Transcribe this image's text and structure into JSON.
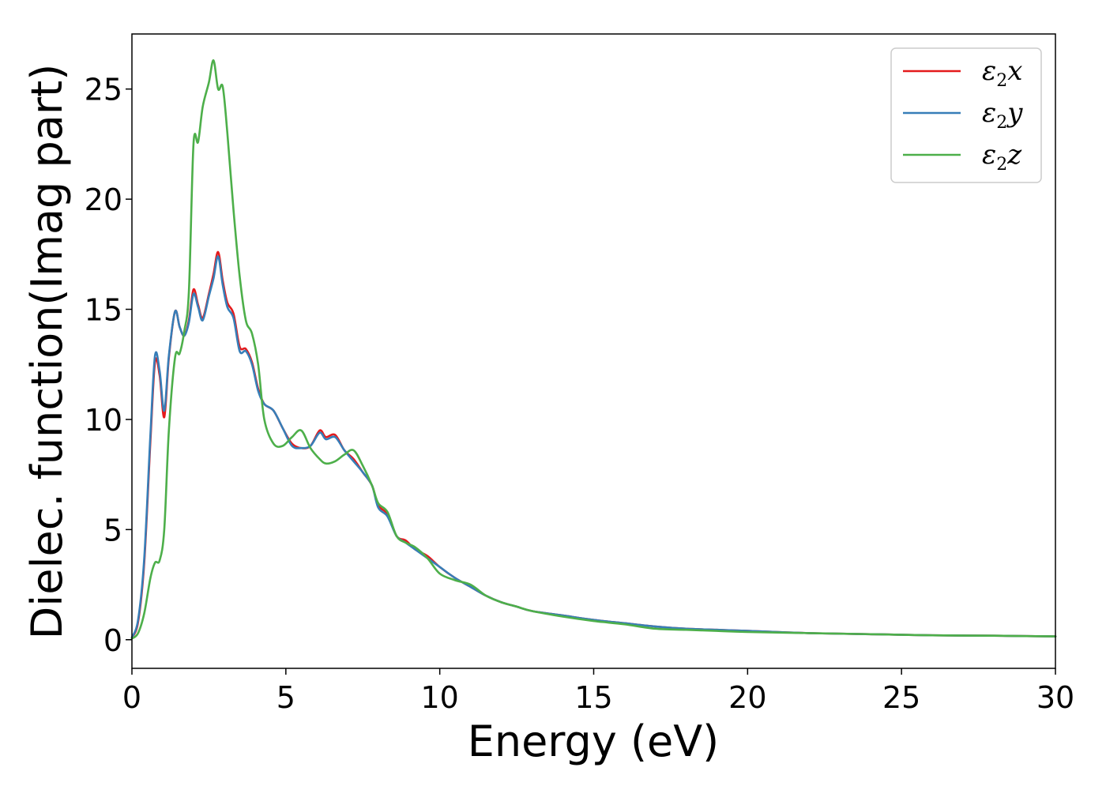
{
  "chart_data": {
    "type": "line",
    "title": "",
    "xlabel": "Energy (eV)",
    "ylabel": "Dielec. function(Imag part)",
    "xlim": [
      0,
      30
    ],
    "ylim": [
      -1.3,
      27.5
    ],
    "xticks": [
      0,
      5,
      10,
      15,
      20,
      25,
      30
    ],
    "yticks": [
      0,
      5,
      10,
      15,
      20,
      25
    ],
    "grid": false,
    "legend_position": "top-right",
    "series": [
      {
        "name": "ε2x",
        "legend_base": "ε",
        "legend_sub": "2",
        "legend_tail": "x",
        "color": "#e41a1c",
        "x": [
          0,
          0.2,
          0.4,
          0.6,
          0.75,
          0.9,
          1.05,
          1.2,
          1.4,
          1.55,
          1.7,
          1.85,
          2.0,
          2.15,
          2.3,
          2.5,
          2.65,
          2.8,
          2.95,
          3.1,
          3.3,
          3.5,
          3.7,
          3.9,
          4.1,
          4.3,
          4.6,
          4.9,
          5.2,
          5.5,
          5.8,
          6.1,
          6.3,
          6.6,
          6.9,
          7.2,
          7.5,
          7.8,
          8.0,
          8.3,
          8.6,
          8.9,
          9.2,
          9.6,
          10.0,
          10.5,
          11.0,
          11.5,
          12.0,
          12.5,
          13.0,
          14.0,
          15.0,
          16.0,
          17.0,
          18.0,
          19.0,
          20.0,
          22.0,
          24.0,
          26.0,
          28.0,
          30.0
        ],
        "values": [
          0.1,
          0.8,
          3.5,
          9.0,
          12.6,
          12.0,
          10.1,
          12.8,
          14.9,
          14.2,
          13.8,
          14.5,
          15.9,
          15.2,
          14.6,
          15.7,
          16.6,
          17.6,
          16.3,
          15.3,
          14.8,
          13.3,
          13.2,
          12.6,
          11.4,
          10.7,
          10.4,
          9.6,
          8.9,
          8.7,
          8.8,
          9.5,
          9.2,
          9.3,
          8.6,
          8.2,
          7.6,
          7.0,
          6.1,
          5.7,
          4.7,
          4.5,
          4.1,
          3.8,
          3.3,
          2.8,
          2.4,
          2.0,
          1.7,
          1.5,
          1.3,
          1.1,
          0.9,
          0.75,
          0.6,
          0.5,
          0.45,
          0.4,
          0.3,
          0.25,
          0.2,
          0.18,
          0.15
        ]
      },
      {
        "name": "ε2y",
        "legend_base": "ε",
        "legend_sub": "2",
        "legend_tail": "y",
        "color": "#377eb8",
        "x": [
          0,
          0.2,
          0.4,
          0.6,
          0.75,
          0.9,
          1.05,
          1.2,
          1.4,
          1.55,
          1.7,
          1.85,
          2.0,
          2.15,
          2.3,
          2.5,
          2.65,
          2.8,
          2.95,
          3.1,
          3.3,
          3.5,
          3.7,
          3.9,
          4.1,
          4.3,
          4.6,
          4.9,
          5.2,
          5.5,
          5.8,
          6.1,
          6.3,
          6.6,
          6.9,
          7.2,
          7.5,
          7.8,
          8.0,
          8.3,
          8.6,
          8.9,
          9.2,
          9.6,
          10.0,
          10.5,
          11.0,
          11.5,
          12.0,
          12.5,
          13.0,
          14.0,
          15.0,
          16.0,
          17.0,
          18.0,
          19.0,
          20.0,
          22.0,
          24.0,
          26.0,
          28.0,
          30.0
        ],
        "values": [
          0.1,
          0.9,
          3.7,
          9.3,
          12.9,
          12.2,
          10.4,
          12.9,
          14.9,
          14.2,
          13.8,
          14.4,
          15.7,
          15.1,
          14.5,
          15.6,
          16.4,
          17.4,
          16.1,
          15.1,
          14.6,
          13.1,
          13.1,
          12.5,
          11.3,
          10.7,
          10.4,
          9.6,
          8.8,
          8.7,
          8.8,
          9.4,
          9.1,
          9.2,
          8.6,
          8.1,
          7.6,
          7.0,
          6.0,
          5.6,
          4.7,
          4.4,
          4.1,
          3.7,
          3.3,
          2.8,
          2.4,
          2.0,
          1.7,
          1.5,
          1.3,
          1.1,
          0.9,
          0.75,
          0.6,
          0.5,
          0.45,
          0.4,
          0.3,
          0.25,
          0.2,
          0.18,
          0.15
        ]
      },
      {
        "name": "ε2z",
        "legend_base": "ε",
        "legend_sub": "2",
        "legend_tail": "z",
        "color": "#4daf4a",
        "x": [
          0,
          0.2,
          0.4,
          0.6,
          0.75,
          0.9,
          1.05,
          1.2,
          1.4,
          1.55,
          1.7,
          1.85,
          2.0,
          2.15,
          2.3,
          2.5,
          2.65,
          2.8,
          2.95,
          3.1,
          3.3,
          3.5,
          3.7,
          3.9,
          4.1,
          4.3,
          4.6,
          4.9,
          5.2,
          5.5,
          5.8,
          6.1,
          6.3,
          6.6,
          6.9,
          7.2,
          7.5,
          7.8,
          8.0,
          8.3,
          8.6,
          8.9,
          9.2,
          9.6,
          10.0,
          10.5,
          11.0,
          11.5,
          12.0,
          12.5,
          13.0,
          14.0,
          15.0,
          16.0,
          17.0,
          18.0,
          19.0,
          20.0,
          22.0,
          24.0,
          26.0,
          28.0,
          30.0
        ],
        "values": [
          0.05,
          0.3,
          1.2,
          2.8,
          3.5,
          3.6,
          5.0,
          9.5,
          12.8,
          13.0,
          14.0,
          15.8,
          22.5,
          22.6,
          24.2,
          25.3,
          26.3,
          25.0,
          25.1,
          23.0,
          19.5,
          16.5,
          14.5,
          13.9,
          12.5,
          10.0,
          8.9,
          8.8,
          9.2,
          9.5,
          8.7,
          8.2,
          8.0,
          8.1,
          8.4,
          8.6,
          7.9,
          7.0,
          6.2,
          5.8,
          4.7,
          4.4,
          4.2,
          3.7,
          3.0,
          2.7,
          2.5,
          2.0,
          1.7,
          1.5,
          1.3,
          1.05,
          0.85,
          0.7,
          0.5,
          0.45,
          0.4,
          0.35,
          0.3,
          0.25,
          0.2,
          0.18,
          0.15
        ]
      }
    ]
  }
}
